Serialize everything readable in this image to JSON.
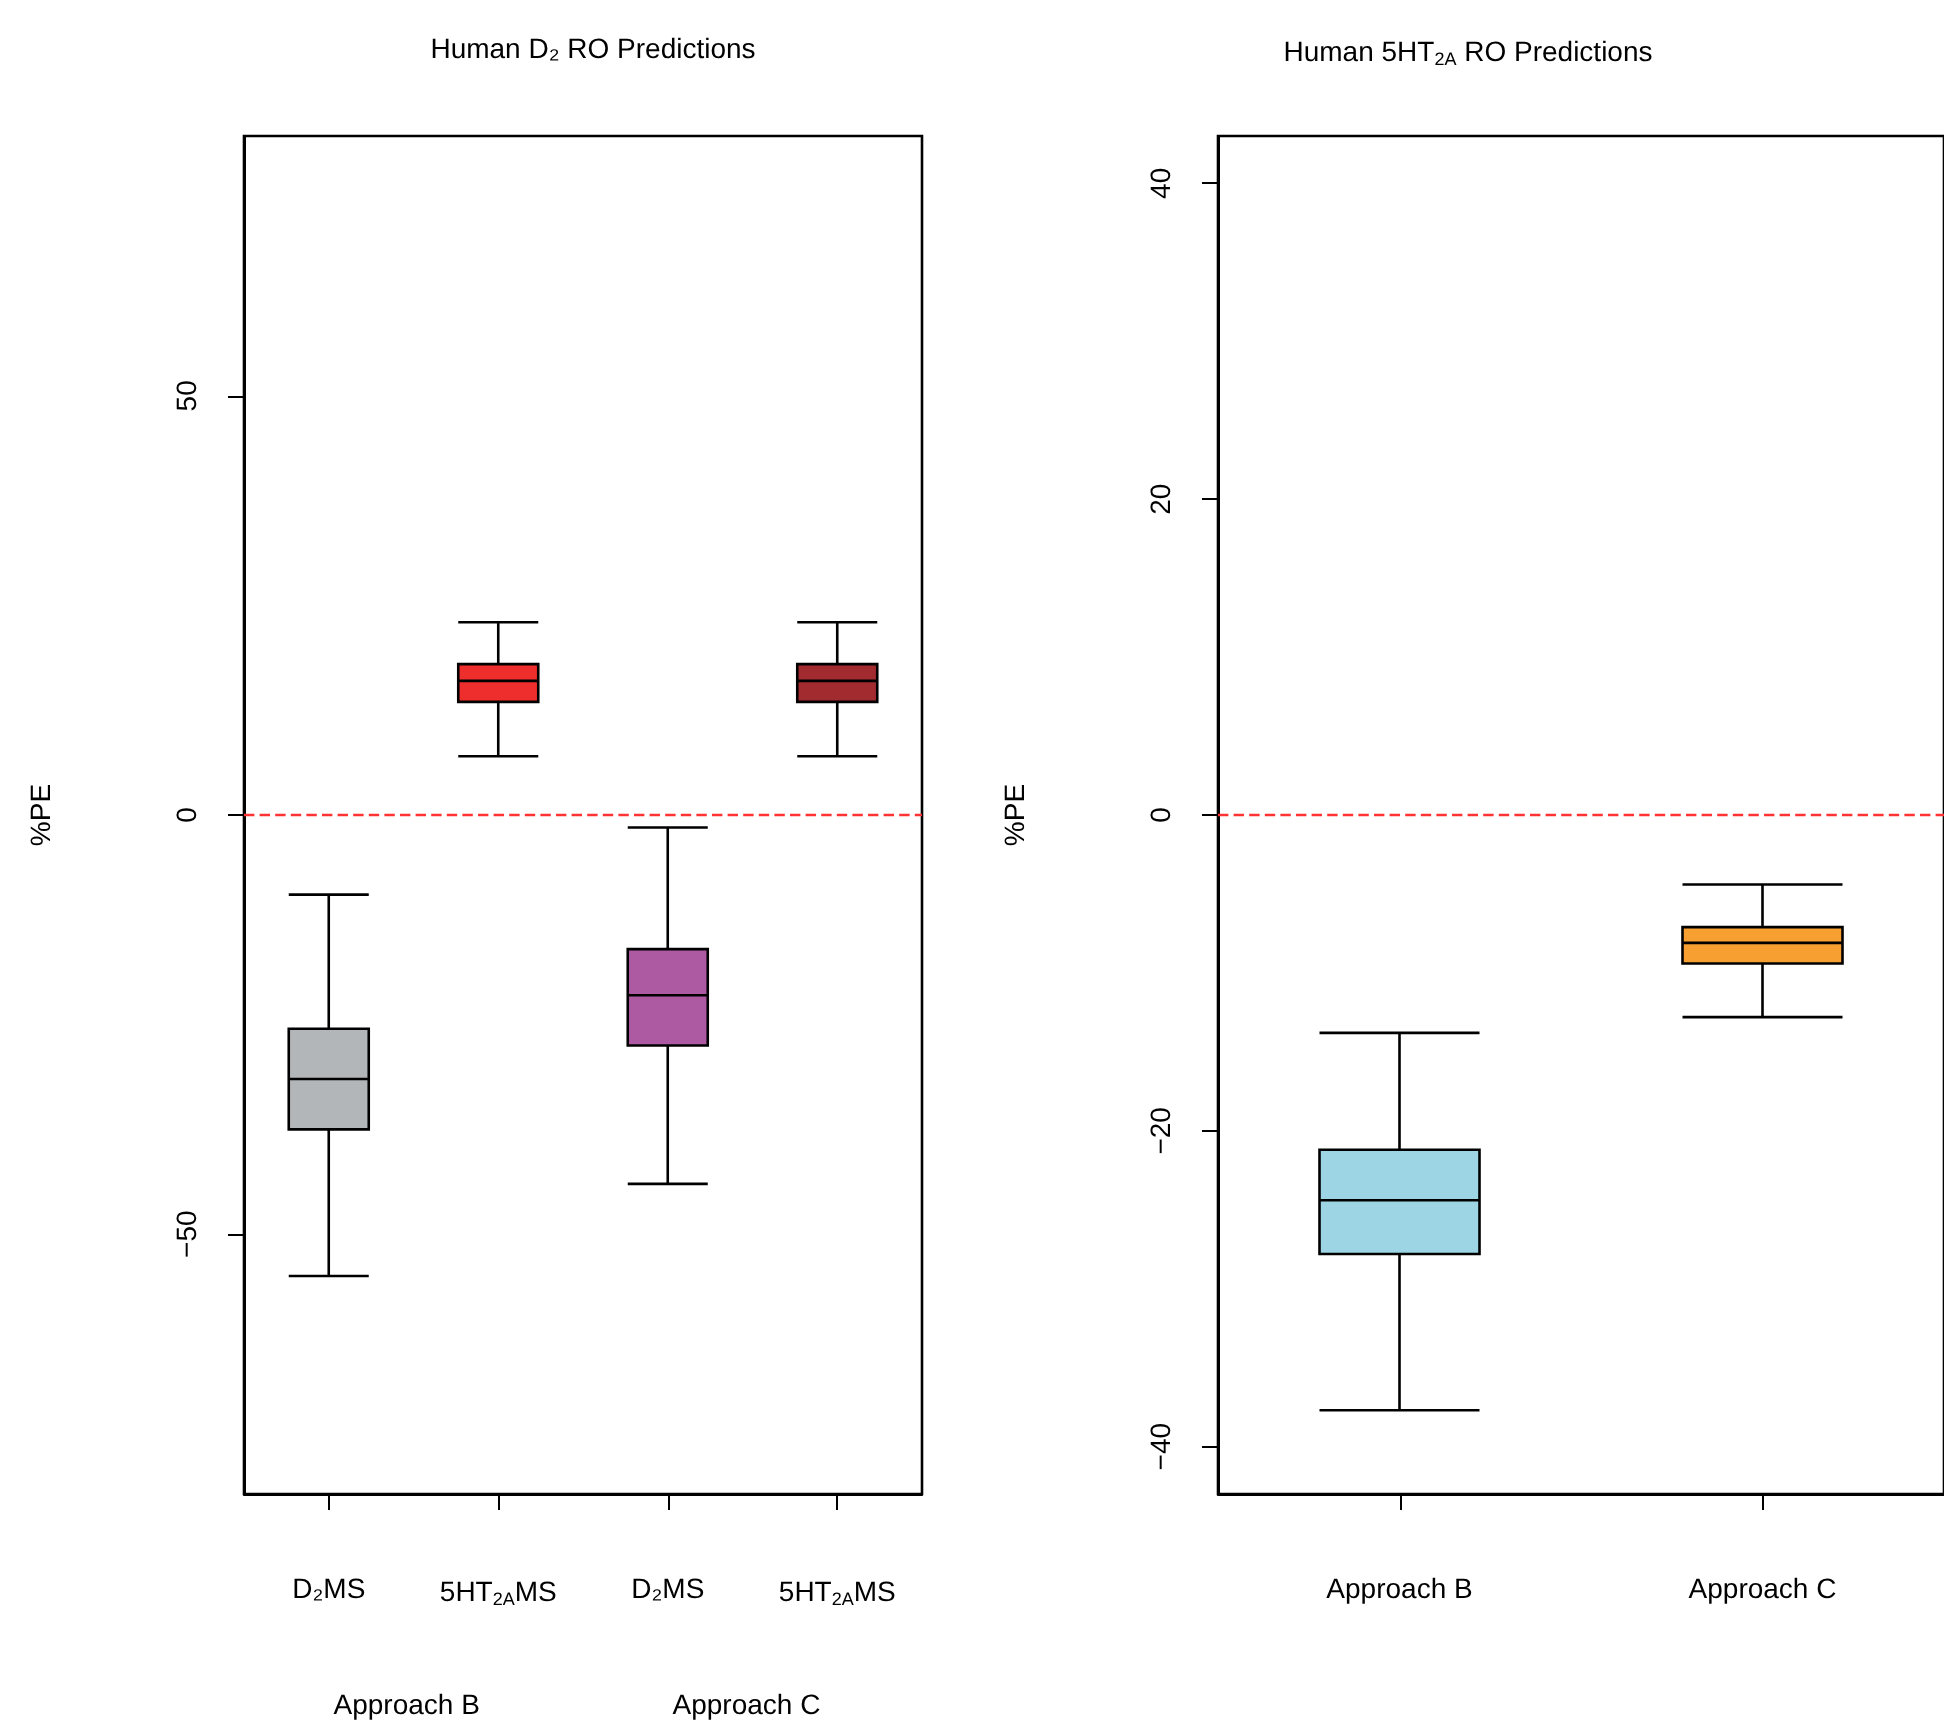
{
  "chart_data": [
    {
      "type": "box",
      "title": "Human D₂ RO Predictions",
      "ylabel": "%PE",
      "categories": [
        "D₂MS",
        "5HT$_{2A}$MS",
        "D₂MS",
        "5HT$_{2A}$MS"
      ],
      "boxes": [
        {
          "low": -55,
          "q1": -37.5,
          "median": -31.5,
          "q3": -25.5,
          "high": -9.5
        },
        {
          "low": 7,
          "q1": 13.5,
          "median": 16,
          "q3": 18,
          "high": 23
        },
        {
          "low": -44,
          "q1": -27.5,
          "median": -21.5,
          "q3": -16,
          "high": -1.5
        },
        {
          "low": 7,
          "q1": 13.5,
          "median": 16,
          "q3": 18,
          "high": 23
        }
      ],
      "colors": [
        "#b3b6b8",
        "#ee2e2c",
        "#ad5aa3",
        "#a22b2f"
      ],
      "ylim": [
        -81,
        81
      ],
      "yticks": [
        -50,
        0,
        50
      ],
      "ref_lines": [
        {
          "axis": "y",
          "value": 0,
          "color": "#ff3333",
          "line_style": "dashed"
        }
      ],
      "annotations": [
        "Approach B",
        "Approach C"
      ]
    },
    {
      "type": "box",
      "title": "Human 5HT$_{2A}$ RO Predictions",
      "ylabel": "%PE",
      "categories": [
        "Approach B",
        "Approach C"
      ],
      "boxes": [
        {
          "low": -37.7,
          "q1": -27.8,
          "median": -24.4,
          "q3": -21.2,
          "high": -13.8
        },
        {
          "low": -12.8,
          "q1": -9.4,
          "median": -8.1,
          "q3": -7.1,
          "high": -4.4
        }
      ],
      "colors": [
        "#9dd5e5",
        "#f7a031"
      ],
      "ylim": [
        -43,
        43
      ],
      "yticks": [
        -40,
        -20,
        0,
        20,
        40
      ],
      "ref_lines": [
        {
          "axis": "y",
          "value": 0,
          "color": "#ff3333",
          "line_style": "dashed"
        }
      ]
    }
  ]
}
